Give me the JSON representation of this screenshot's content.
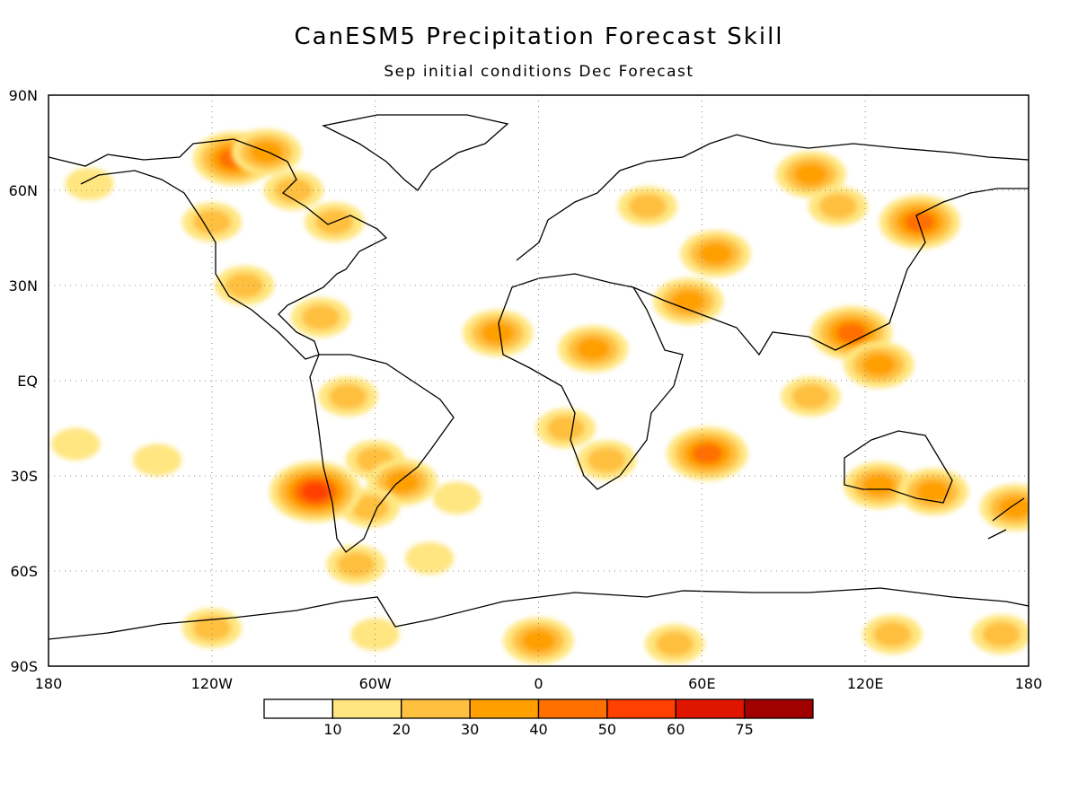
{
  "title": "CanESM5 Precipitation Forecast Skill",
  "subtitle": "Sep initial conditions   Dec Forecast",
  "axes": {
    "lat_labels": [
      "90N",
      "60N",
      "30N",
      "EQ",
      "30S",
      "60S",
      "90S"
    ],
    "lat_values": [
      90,
      60,
      30,
      0,
      -30,
      -60,
      -90
    ],
    "lon_labels": [
      "180",
      "120W",
      "60W",
      "0",
      "60E",
      "120E",
      "180"
    ],
    "lon_values": [
      -180,
      -120,
      -60,
      0,
      60,
      120,
      180
    ],
    "lon_range": [
      -180,
      180
    ],
    "lat_range": [
      -90,
      90
    ],
    "grid": "dotted"
  },
  "colorbar": {
    "labels": [
      "10",
      "20",
      "30",
      "40",
      "50",
      "60",
      "75"
    ],
    "levels": [
      0,
      10,
      20,
      30,
      40,
      50,
      60,
      75,
      100
    ],
    "colors": [
      "#ffffff",
      "#ffe680",
      "#ffc040",
      "#ffa000",
      "#ff7000",
      "#ff4000",
      "#e01500",
      "#a00000"
    ]
  },
  "chart_data": {
    "type": "heatmap",
    "variable": "precipitation forecast skill",
    "regions": [
      {
        "lon": -165,
        "lat": 62,
        "level": 1
      },
      {
        "lon": -120,
        "lat": 50,
        "level": 2
      },
      {
        "lon": -112,
        "lat": 70,
        "level": 4
      },
      {
        "lon": -100,
        "lat": 72,
        "level": 3
      },
      {
        "lon": -90,
        "lat": 60,
        "level": 2
      },
      {
        "lon": -75,
        "lat": 50,
        "level": 2
      },
      {
        "lon": -108,
        "lat": 30,
        "level": 2
      },
      {
        "lon": -80,
        "lat": 20,
        "level": 2
      },
      {
        "lon": -170,
        "lat": -20,
        "level": 1
      },
      {
        "lon": -140,
        "lat": -25,
        "level": 1
      },
      {
        "lon": -70,
        "lat": -5,
        "level": 2
      },
      {
        "lon": -60,
        "lat": -25,
        "level": 2
      },
      {
        "lon": -50,
        "lat": -32,
        "level": 3
      },
      {
        "lon": -62,
        "lat": -40,
        "level": 2
      },
      {
        "lon": -67,
        "lat": -58,
        "level": 2
      },
      {
        "lon": -40,
        "lat": -56,
        "level": 1
      },
      {
        "lon": -82,
        "lat": -35,
        "level": 5
      },
      {
        "lon": -30,
        "lat": -37,
        "level": 1
      },
      {
        "lon": -15,
        "lat": 15,
        "level": 3
      },
      {
        "lon": 20,
        "lat": 10,
        "level": 3
      },
      {
        "lon": 10,
        "lat": -15,
        "level": 2
      },
      {
        "lon": 25,
        "lat": -25,
        "level": 2
      },
      {
        "lon": 62,
        "lat": -23,
        "level": 4
      },
      {
        "lon": 40,
        "lat": 55,
        "level": 2
      },
      {
        "lon": 65,
        "lat": 40,
        "level": 3
      },
      {
        "lon": 55,
        "lat": 25,
        "level": 3
      },
      {
        "lon": 100,
        "lat": 65,
        "level": 3
      },
      {
        "lon": 110,
        "lat": 55,
        "level": 2
      },
      {
        "lon": 140,
        "lat": 50,
        "level": 4
      },
      {
        "lon": 115,
        "lat": 15,
        "level": 4
      },
      {
        "lon": 125,
        "lat": 5,
        "level": 3
      },
      {
        "lon": 100,
        "lat": -5,
        "level": 2
      },
      {
        "lon": 125,
        "lat": -33,
        "level": 3
      },
      {
        "lon": 145,
        "lat": -35,
        "level": 3
      },
      {
        "lon": 175,
        "lat": -40,
        "level": 3
      },
      {
        "lon": -120,
        "lat": -78,
        "level": 2
      },
      {
        "lon": -60,
        "lat": -80,
        "level": 1
      },
      {
        "lon": 0,
        "lat": -82,
        "level": 3
      },
      {
        "lon": 50,
        "lat": -83,
        "level": 2
      },
      {
        "lon": 130,
        "lat": -80,
        "level": 2
      },
      {
        "lon": 170,
        "lat": -80,
        "level": 2
      }
    ]
  }
}
